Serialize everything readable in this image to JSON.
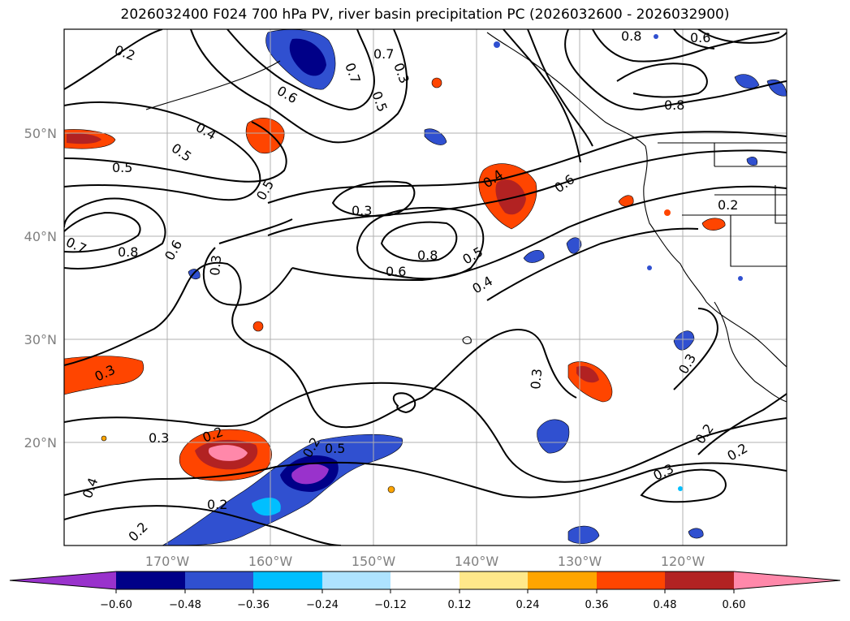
{
  "title": "2026032400 F024 700 hPa PV, river basin precipitation PC (2026032600 - 2026032900)",
  "map": {
    "lon_ticks": [
      "170°W",
      "160°W",
      "150°W",
      "140°W",
      "130°W",
      "120°W"
    ],
    "lat_ticks": [
      "50°N",
      "40°N",
      "30°N",
      "20°N"
    ]
  },
  "colorbar": {
    "labels": [
      "−0.60",
      "−0.48",
      "−0.36",
      "−0.24",
      "−0.12",
      "0.12",
      "0.24",
      "0.36",
      "0.48",
      "0.60"
    ],
    "colors": [
      "#9932cc",
      "#000088",
      "#3050d0",
      "#00bfff",
      "#aee3ff",
      "#ffffff",
      "#ffe88a",
      "#ffa500",
      "#ff4500",
      "#b22222",
      "#ff88aa"
    ]
  },
  "contour_labels": [
    {
      "id": "a",
      "text": "0.2"
    },
    {
      "id": "b",
      "text": "0.7"
    },
    {
      "id": "c",
      "text": "0.6"
    },
    {
      "id": "d",
      "text": "0.7"
    },
    {
      "id": "e",
      "text": "0.5"
    },
    {
      "id": "f",
      "text": "0.3"
    },
    {
      "id": "g",
      "text": "0.8"
    },
    {
      "id": "h",
      "text": "0.6"
    },
    {
      "id": "i",
      "text": "0.8"
    },
    {
      "id": "j",
      "text": "0.4"
    },
    {
      "id": "k",
      "text": "0.5"
    },
    {
      "id": "l",
      "text": "0.5"
    },
    {
      "id": "m",
      "text": "0.5"
    },
    {
      "id": "n",
      "text": "0.3"
    },
    {
      "id": "o",
      "text": "0.4"
    },
    {
      "id": "p",
      "text": "0.6"
    },
    {
      "id": "q",
      "text": "0.2"
    },
    {
      "id": "r",
      "text": "0.8"
    },
    {
      "id": "s",
      "text": "0.6"
    },
    {
      "id": "t",
      "text": "0.3"
    },
    {
      "id": "u",
      "text": "0.7"
    },
    {
      "id": "v",
      "text": "0.8"
    },
    {
      "id": "w",
      "text": "0.6"
    },
    {
      "id": "x",
      "text": "0.5"
    },
    {
      "id": "y",
      "text": "0.4"
    },
    {
      "id": "z",
      "text": "0.3"
    },
    {
      "id": "aa",
      "text": "0.3"
    },
    {
      "id": "ab",
      "text": "0.3"
    },
    {
      "id": "ac",
      "text": "0.3"
    },
    {
      "id": "ad",
      "text": "0.2"
    },
    {
      "id": "ae",
      "text": "0.4"
    },
    {
      "id": "af",
      "text": "0.2"
    },
    {
      "id": "ag",
      "text": "0.2"
    },
    {
      "id": "ah",
      "text": "0.2"
    },
    {
      "id": "ai",
      "text": "0.2"
    },
    {
      "id": "aj",
      "text": "0.3"
    },
    {
      "id": "ak",
      "text": "0.2"
    },
    {
      "id": "al",
      "text": "0.5"
    }
  ]
}
